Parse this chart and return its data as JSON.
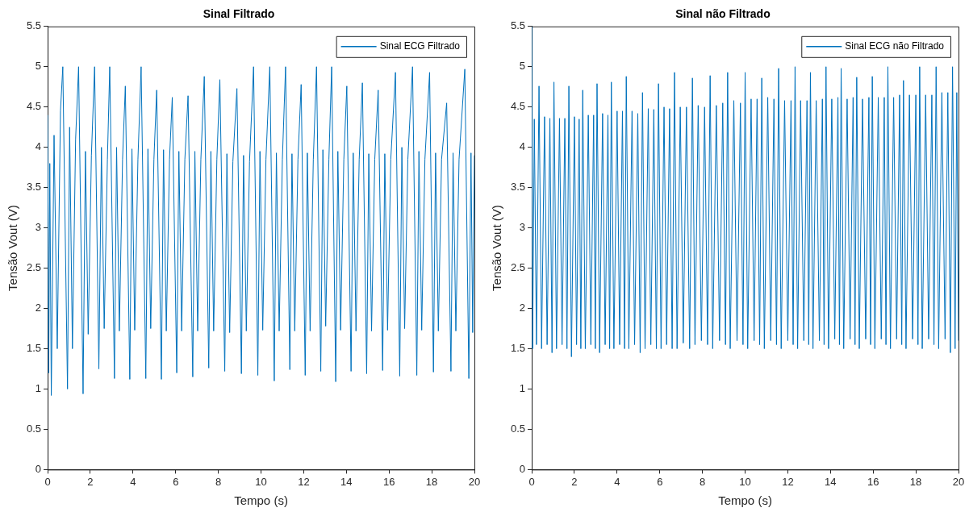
{
  "chart_data": [
    {
      "type": "line",
      "title": "Sinal Filtrado",
      "xlabel": "Tempo (s)",
      "ylabel": "Tensão Vout (V)",
      "legend": "top right",
      "marker": "none",
      "line_style": "solid",
      "xlim": [
        0,
        20
      ],
      "ylim": [
        0,
        5.5
      ],
      "xticks": [
        0,
        2,
        4,
        6,
        8,
        10,
        12,
        14,
        16,
        18,
        20
      ],
      "yticks": [
        0,
        0.5,
        1,
        1.5,
        2,
        2.5,
        3,
        3.5,
        4,
        4.5,
        5,
        5.5
      ],
      "x": [
        0,
        0.05,
        0.1,
        0.17,
        0.3,
        0.45,
        0.6,
        0.71,
        0.93,
        1.03,
        1.16,
        1.31,
        1.45,
        1.66,
        1.77,
        1.9,
        2.05,
        2.2,
        2.4,
        2.52,
        2.65,
        2.8,
        2.91,
        3.13,
        3.23,
        3.36,
        3.51,
        3.64,
        3.85,
        3.95,
        4.08,
        4.23,
        4.38,
        4.6,
        4.7,
        4.83,
        4.98,
        5.11,
        5.33,
        5.43,
        5.56,
        5.71,
        5.84,
        6.05,
        6.15,
        6.28,
        6.43,
        6.58,
        6.8,
        6.9,
        7.03,
        7.18,
        7.34,
        7.55,
        7.65,
        7.78,
        7.93,
        8.07,
        8.3,
        8.4,
        8.53,
        8.68,
        8.87,
        9.08,
        9.18,
        9.31,
        9.46,
        9.65,
        9.85,
        9.95,
        10.08,
        10.23,
        10.41,
        10.62,
        10.72,
        10.85,
        11.0,
        11.15,
        11.35,
        11.45,
        11.58,
        11.73,
        11.88,
        12.07,
        12.17,
        12.3,
        12.45,
        12.6,
        12.8,
        12.9,
        13.03,
        13.18,
        13.31,
        13.5,
        13.6,
        13.73,
        13.88,
        14.02,
        14.22,
        14.32,
        14.45,
        14.6,
        14.75,
        14.95,
        15.05,
        15.18,
        15.33,
        15.49,
        15.7,
        15.8,
        15.93,
        16.08,
        16.3,
        16.5,
        16.6,
        16.73,
        16.88,
        17.1,
        17.3,
        17.4,
        17.53,
        17.68,
        17.9,
        18.08,
        18.18,
        18.31,
        18.46,
        18.7,
        18.9,
        19.0,
        19.13,
        19.28,
        19.55,
        19.74,
        19.84,
        19.92,
        20.0
      ],
      "series": [
        {
          "name": "Sinal ECG Filtrado",
          "color": "#0072bd",
          "values": [
            4.4,
            1.2,
            3.8,
            0.92,
            4.15,
            1.5,
            4.45,
            5.0,
            1.0,
            4.25,
            1.5,
            4.1,
            5.0,
            0.94,
            3.95,
            1.68,
            3.9,
            5.0,
            1.25,
            4.0,
            1.75,
            3.85,
            5.0,
            1.13,
            4.0,
            1.72,
            3.85,
            4.76,
            1.12,
            3.98,
            1.73,
            3.85,
            5.0,
            1.13,
            3.98,
            1.75,
            3.85,
            4.71,
            1.12,
            3.97,
            1.72,
            3.85,
            4.62,
            1.2,
            3.95,
            1.72,
            3.85,
            4.64,
            1.15,
            3.95,
            1.72,
            3.85,
            4.88,
            1.26,
            3.95,
            1.72,
            3.85,
            4.84,
            1.22,
            3.92,
            1.7,
            3.82,
            4.73,
            1.19,
            3.9,
            1.72,
            3.82,
            5.0,
            1.17,
            3.95,
            1.73,
            3.85,
            5.0,
            1.1,
            3.93,
            1.72,
            3.85,
            5.0,
            1.24,
            3.92,
            1.72,
            3.85,
            4.78,
            1.17,
            3.93,
            1.72,
            3.85,
            5.0,
            1.22,
            3.97,
            1.78,
            3.85,
            5.0,
            1.09,
            3.95,
            1.73,
            3.85,
            4.76,
            1.22,
            3.93,
            1.72,
            3.85,
            4.8,
            1.19,
            3.92,
            1.72,
            3.85,
            4.71,
            1.23,
            3.92,
            1.73,
            3.85,
            4.93,
            1.16,
            4.0,
            1.75,
            3.85,
            5.0,
            1.17,
            3.95,
            1.73,
            3.85,
            4.93,
            1.21,
            3.93,
            1.72,
            3.85,
            4.55,
            1.22,
            3.93,
            1.72,
            3.85,
            4.97,
            1.13,
            3.93,
            1.7,
            3.9
          ]
        }
      ]
    },
    {
      "type": "line",
      "title": "Sinal não Filtrado",
      "xlabel": "Tempo (s)",
      "ylabel": "Tensão Vout (V)",
      "legend": "top right",
      "marker": "none",
      "line_style": "solid",
      "xlim": [
        0,
        20
      ],
      "ylim": [
        0,
        5.5
      ],
      "xticks": [
        0,
        2,
        4,
        6,
        8,
        10,
        12,
        14,
        16,
        18,
        20
      ],
      "yticks": [
        0,
        0.5,
        1,
        1.5,
        2,
        2.5,
        3,
        3.5,
        4,
        4.5,
        5,
        5.5
      ],
      "x": [
        0,
        0.04,
        0.12,
        0.22,
        0.34,
        0.46,
        0.6,
        0.72,
        0.85,
        0.95,
        1.04,
        1.16,
        1.3,
        1.42,
        1.55,
        1.65,
        1.74,
        1.86,
        2.0,
        2.1,
        2.22,
        2.3,
        2.39,
        2.51,
        2.65,
        2.77,
        2.9,
        2.98,
        3.06,
        3.18,
        3.32,
        3.44,
        3.57,
        3.65,
        3.73,
        3.85,
        4.0,
        4.12,
        4.25,
        4.35,
        4.43,
        4.55,
        4.7,
        4.82,
        4.97,
        5.08,
        5.19,
        5.31,
        5.46,
        5.58,
        5.72,
        5.84,
        5.94,
        6.06,
        6.2,
        6.32,
        6.46,
        6.58,
        6.69,
        6.81,
        6.96,
        7.1,
        7.25,
        7.4,
        7.53,
        7.65,
        7.8,
        7.95,
        8.1,
        8.24,
        8.36,
        8.48,
        8.65,
        8.8,
        8.95,
        9.08,
        9.18,
        9.3,
        9.47,
        9.62,
        9.78,
        9.9,
        10.0,
        10.12,
        10.28,
        10.42,
        10.56,
        10.68,
        10.78,
        10.9,
        11.06,
        11.2,
        11.35,
        11.47,
        11.57,
        11.69,
        11.85,
        12.0,
        12.15,
        12.25,
        12.34,
        12.46,
        12.6,
        12.75,
        12.9,
        12.98,
        13.06,
        13.18,
        13.33,
        13.48,
        13.62,
        13.7,
        13.79,
        13.91,
        14.06,
        14.2,
        14.35,
        14.42,
        14.5,
        14.62,
        14.78,
        14.92,
        15.06,
        15.15,
        15.23,
        15.35,
        15.5,
        15.65,
        15.8,
        15.88,
        15.96,
        16.08,
        16.24,
        16.38,
        16.52,
        16.6,
        16.69,
        16.81,
        16.96,
        17.1,
        17.24,
        17.34,
        17.42,
        17.54,
        17.7,
        17.85,
        18.0,
        18.1,
        18.18,
        18.3,
        18.46,
        18.6,
        18.75,
        18.85,
        18.95,
        19.07,
        19.22,
        19.37,
        19.5,
        19.62,
        19.72,
        19.84,
        19.92,
        20.0
      ],
      "series": [
        {
          "name": "Sinal ECG não Filtrado",
          "color": "#0072bd",
          "values": [
            5.5,
            1.5,
            4.35,
            1.55,
            4.76,
            1.5,
            4.38,
            1.55,
            4.36,
            1.45,
            4.81,
            1.5,
            4.36,
            1.55,
            4.36,
            1.5,
            4.76,
            1.4,
            4.38,
            1.55,
            4.35,
            1.5,
            4.71,
            1.5,
            4.4,
            1.55,
            4.4,
            1.5,
            4.79,
            1.45,
            4.42,
            1.55,
            4.4,
            1.5,
            4.81,
            1.5,
            4.45,
            1.55,
            4.45,
            1.5,
            4.88,
            1.5,
            4.45,
            1.55,
            4.42,
            1.45,
            4.68,
            1.5,
            4.48,
            1.55,
            4.47,
            1.5,
            4.79,
            1.5,
            4.5,
            1.55,
            4.48,
            1.5,
            4.93,
            1.5,
            4.5,
            1.57,
            4.5,
            1.5,
            4.86,
            1.55,
            4.52,
            1.6,
            4.5,
            1.55,
            4.89,
            1.5,
            4.52,
            1.6,
            4.55,
            1.55,
            4.93,
            1.5,
            4.58,
            1.6,
            4.55,
            1.55,
            4.93,
            1.5,
            4.6,
            1.6,
            4.6,
            1.55,
            4.86,
            1.5,
            4.62,
            1.6,
            4.6,
            1.55,
            4.98,
            1.5,
            4.58,
            1.6,
            4.58,
            1.55,
            5.0,
            1.5,
            4.58,
            1.6,
            4.58,
            1.55,
            4.93,
            1.5,
            4.58,
            1.6,
            4.6,
            1.55,
            5.0,
            1.5,
            4.6,
            1.62,
            4.62,
            1.55,
            4.98,
            1.5,
            4.6,
            1.62,
            4.62,
            1.55,
            4.87,
            1.5,
            4.6,
            1.62,
            4.62,
            1.55,
            4.88,
            1.5,
            4.62,
            1.62,
            4.62,
            1.55,
            5.0,
            1.5,
            4.62,
            1.62,
            4.65,
            1.55,
            4.83,
            1.5,
            4.65,
            1.62,
            4.65,
            1.55,
            5.0,
            1.5,
            4.65,
            1.62,
            4.65,
            1.55,
            5.0,
            1.5,
            4.68,
            1.62,
            4.68,
            1.45,
            5.0,
            1.5,
            4.68,
            1.6
          ]
        }
      ]
    }
  ]
}
